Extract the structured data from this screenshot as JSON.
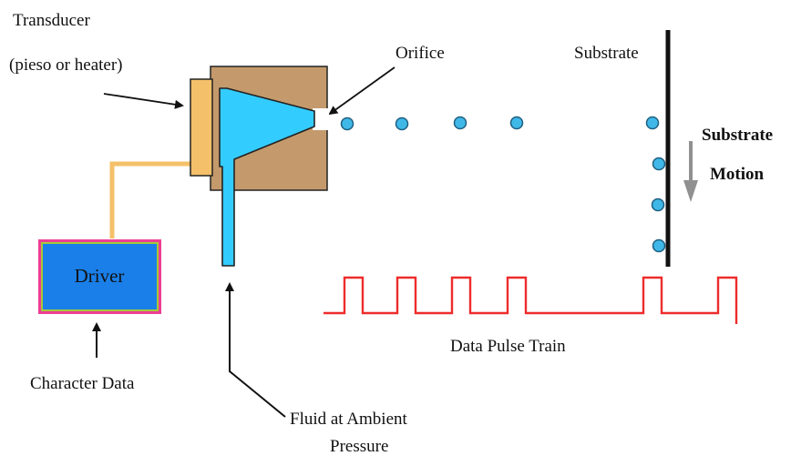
{
  "labels": {
    "transducer_line1": "Transducer",
    "transducer_line2": "(pieso or heater)",
    "orifice": "Orifice",
    "substrate": "Substrate",
    "substrate_motion_line1": "Substrate",
    "substrate_motion_line2": "Motion",
    "driver": "Driver",
    "character_data": "Character Data",
    "data_pulse_train": "Data Pulse Train",
    "fluid_line1": "Fluid at Ambient",
    "fluid_line2": "Pressure"
  },
  "colors": {
    "chamber_body": "#c49a6c",
    "chamber_fluid": "#33ccff",
    "transducer": "#f5c06a",
    "feed_line": "#f5c06a",
    "driver_fill": "#1a7fe8",
    "driver_border": "#ee3d96",
    "driver_inner_border": "#a5c93a",
    "droplet": "#3fb8e8",
    "pulse": "#ee2c2c",
    "substrate": "#111111",
    "motion_arrow": "#909090"
  }
}
